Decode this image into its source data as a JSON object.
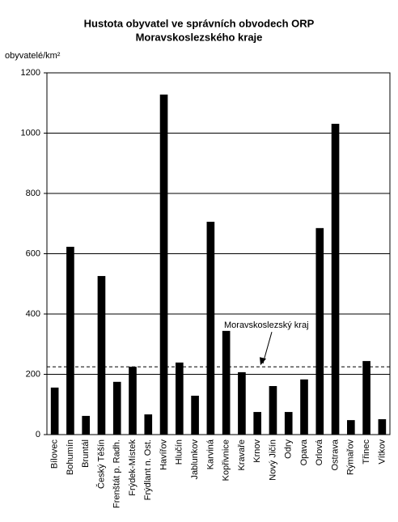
{
  "chart_data": {
    "type": "bar",
    "title": [
      "Hustota obyvatel ve správních obvodech ORP",
      "Moravskoslezského kraje"
    ],
    "y_label": "obyvatelé/km²",
    "categories": [
      "Bílovec",
      "Bohumín",
      "Bruntál",
      "Český Těšín",
      "Frenštát p. Radh.",
      "Frýdek-Místek",
      "Frýdlant n. Ost.",
      "Havířov",
      "Hlučín",
      "Jablunkov",
      "Karviná",
      "Kopřivnice",
      "Kravaře",
      "Krnov",
      "Nový Jičín",
      "Odry",
      "Opava",
      "Orlová",
      "Ostrava",
      "Rýmařov",
      "Třinec",
      "Vítkov"
    ],
    "values": [
      156,
      623,
      62,
      526,
      175,
      225,
      67,
      1128,
      239,
      129,
      706,
      344,
      207,
      75,
      161,
      75,
      183,
      685,
      1031,
      48,
      244,
      51
    ],
    "color": "#000000",
    "ylim": [
      0,
      1200
    ],
    "yticks": [
      0,
      200,
      400,
      600,
      800,
      1000,
      1200
    ],
    "grid": true,
    "reference_line": {
      "label": "Moravskoslezský kraj",
      "value": 225
    }
  }
}
